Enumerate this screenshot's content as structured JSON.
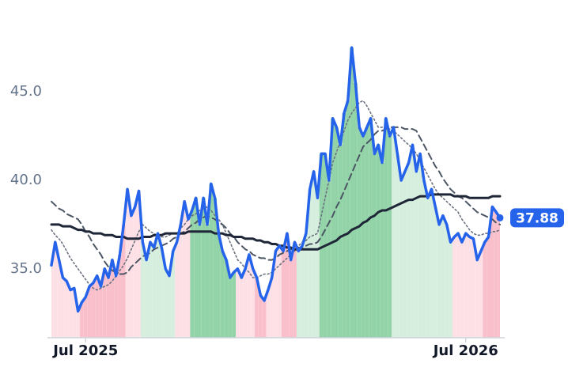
{
  "chart_data": {
    "type": "line",
    "categories": [
      null,
      null,
      null,
      null,
      null,
      null,
      null,
      null,
      null,
      "Jul 2025",
      null,
      null,
      null,
      null,
      null,
      null,
      null,
      null,
      null,
      null,
      null,
      null,
      null,
      null,
      null,
      null,
      null,
      null,
      null,
      null,
      null,
      null,
      null,
      null,
      null,
      null,
      null,
      null,
      null,
      null,
      null,
      null,
      null,
      null,
      null,
      null,
      null,
      null,
      null,
      null,
      null,
      null,
      null,
      null,
      null,
      null,
      null,
      null,
      null,
      null,
      null,
      null,
      null,
      null,
      null,
      null,
      null,
      null,
      null,
      null,
      null,
      null,
      null,
      null,
      null,
      null,
      null,
      null,
      null,
      null,
      null,
      null,
      null,
      null,
      null,
      null,
      null,
      null,
      null,
      null,
      null,
      null,
      null,
      null,
      null,
      null,
      null,
      null,
      null,
      null,
      null,
      null,
      null,
      null,
      null,
      null,
      null,
      null,
      null,
      "Jul 2026",
      null,
      null,
      null,
      null,
      null,
      null,
      null,
      null,
      null
    ],
    "series": [
      {
        "color": "#2563eb",
        "line_style": "solid",
        "values": [
          35.2,
          36.5,
          35.5,
          34.5,
          34.3,
          33.8,
          33.9,
          32.6,
          33.1,
          33.4,
          34.0,
          34.2,
          34.6,
          34.0,
          35.0,
          34.5,
          35.5,
          34.6,
          35.8,
          37.5,
          39.5,
          38.0,
          38.5,
          39.4,
          36.5,
          35.5,
          36.5,
          36.2,
          37.0,
          36.2,
          35.0,
          34.6,
          36.0,
          36.5,
          37.5,
          38.8,
          37.8,
          38.3,
          39.0,
          37.5,
          39.0,
          37.5,
          39.8,
          39.0,
          37.0,
          36.0,
          35.5,
          34.5,
          34.8,
          35.0,
          34.5,
          35.0,
          35.8,
          35.0,
          34.5,
          33.5,
          33.2,
          33.8,
          34.5,
          36.0,
          36.3,
          36.0,
          37.0,
          35.5,
          36.5,
          36.0,
          36.3,
          37.0,
          39.5,
          40.5,
          39.0,
          41.5,
          41.5,
          40.0,
          43.5,
          43.0,
          42.0,
          43.8,
          44.5,
          47.5,
          45.5,
          43.0,
          42.5,
          43.0,
          43.5,
          41.5,
          42.0,
          41.0,
          43.5,
          42.5,
          43.0,
          41.5,
          40.0,
          40.5,
          41.0,
          42.0,
          40.5,
          41.5,
          40.0,
          39.0,
          39.5,
          38.5,
          37.5,
          38.0,
          37.5,
          36.5,
          36.8,
          37.0,
          36.5,
          37.0,
          36.8,
          36.7,
          35.5,
          36.0,
          36.5,
          36.8,
          38.5,
          38.2,
          37.88
        ]
      },
      {
        "color": "#1e2638",
        "line_style": "solid",
        "values": [
          37.5,
          37.5,
          37.5,
          37.4,
          37.4,
          37.4,
          37.3,
          37.2,
          37.2,
          37.1,
          37.1,
          37.0,
          37.0,
          37.0,
          36.9,
          36.9,
          36.9,
          36.8,
          36.8,
          36.8,
          36.7,
          36.7,
          36.7,
          36.7,
          36.8,
          36.8,
          36.8,
          36.9,
          36.9,
          36.9,
          37.0,
          37.0,
          37.0,
          37.0,
          37.0,
          37.0,
          37.1,
          37.1,
          37.1,
          37.1,
          37.1,
          37.1,
          37.1,
          37.0,
          37.0,
          37.0,
          36.9,
          36.9,
          36.8,
          36.8,
          36.8,
          36.7,
          36.7,
          36.7,
          36.6,
          36.6,
          36.5,
          36.5,
          36.4,
          36.4,
          36.3,
          36.3,
          36.2,
          36.2,
          36.1,
          36.1,
          36.1,
          36.1,
          36.1,
          36.1,
          36.1,
          36.2,
          36.3,
          36.4,
          36.5,
          36.6,
          36.8,
          36.9,
          37.0,
          37.2,
          37.3,
          37.4,
          37.6,
          37.7,
          37.9,
          38.0,
          38.2,
          38.3,
          38.3,
          38.4,
          38.5,
          38.6,
          38.7,
          38.8,
          38.9,
          38.9,
          39.0,
          39.1,
          39.1,
          39.1,
          39.2,
          39.2,
          39.2,
          39.2,
          39.2,
          39.2,
          39.1,
          39.1,
          39.1,
          39.1,
          39.0,
          39.0,
          39.0,
          39.0,
          39.0,
          39.0,
          39.1,
          39.1,
          39.1
        ]
      },
      {
        "color": "#4b5563",
        "line_style": "dashed",
        "values": [
          38.8,
          38.6,
          38.4,
          38.3,
          38.1,
          38.0,
          37.9,
          37.8,
          37.5,
          37.1,
          36.8,
          36.4,
          36.1,
          35.8,
          35.4,
          35.1,
          34.9,
          34.8,
          34.7,
          34.7,
          34.8,
          35.1,
          35.3,
          35.5,
          35.7,
          35.8,
          35.9,
          36.1,
          36.2,
          36.3,
          36.4,
          36.5,
          36.7,
          36.8,
          37.0,
          37.1,
          37.3,
          37.5,
          37.6,
          37.8,
          37.9,
          38.0,
          37.9,
          37.8,
          37.6,
          37.5,
          37.3,
          37.0,
          36.8,
          36.5,
          36.3,
          36.1,
          36.0,
          35.8,
          35.7,
          35.6,
          35.6,
          35.5,
          35.5,
          35.6,
          35.8,
          35.9,
          36.0,
          36.1,
          36.1,
          36.2,
          36.2,
          36.3,
          36.4,
          36.4,
          36.5,
          36.8,
          37.2,
          37.6,
          38.0,
          38.5,
          38.9,
          39.4,
          39.9,
          40.4,
          40.9,
          41.4,
          41.9,
          42.1,
          42.3,
          42.6,
          42.8,
          42.8,
          42.9,
          43.0,
          43.0,
          43.0,
          43.0,
          42.9,
          42.9,
          42.9,
          42.8,
          42.4,
          42.0,
          41.6,
          41.2,
          40.8,
          40.5,
          40.1,
          39.8,
          39.5,
          39.3,
          39.1,
          39.0,
          38.8,
          38.6,
          38.4,
          38.2,
          38.1,
          38.0,
          37.9,
          37.8,
          37.6,
          37.5
        ]
      },
      {
        "color": "#6b7280",
        "line_style": "dotted",
        "values": [
          37.2,
          36.9,
          36.7,
          36.4,
          36.0,
          35.6,
          35.3,
          35.0,
          34.7,
          34.4,
          34.1,
          33.9,
          33.8,
          33.9,
          34.0,
          34.1,
          34.3,
          34.6,
          34.9,
          35.2,
          35.6,
          36.1,
          36.6,
          37.1,
          37.5,
          37.3,
          37.1,
          37.0,
          36.8,
          36.8,
          36.8,
          36.9,
          37.0,
          37.0,
          37.3,
          37.5,
          37.8,
          38.0,
          38.1,
          38.3,
          38.4,
          38.5,
          38.3,
          38.0,
          37.8,
          37.5,
          37.0,
          36.5,
          36.0,
          35.5,
          35.3,
          35.0,
          34.8,
          34.5,
          34.5,
          34.6,
          34.7,
          34.7,
          34.8,
          35.0,
          35.2,
          35.4,
          35.6,
          35.8,
          36.0,
          36.3,
          36.5,
          36.6,
          36.8,
          36.9,
          37.0,
          38.0,
          39.0,
          40.0,
          41.0,
          41.6,
          42.2,
          42.8,
          43.4,
          43.8,
          44.1,
          44.4,
          44.5,
          44.2,
          43.8,
          43.4,
          43.0,
          43.0,
          42.9,
          42.9,
          42.8,
          42.6,
          42.4,
          42.2,
          42.0,
          41.8,
          41.5,
          41.1,
          40.7,
          40.3,
          39.9,
          39.5,
          39.2,
          39.0,
          38.8,
          38.6,
          38.4,
          38.2,
          37.8,
          37.5,
          37.2,
          37.0,
          36.9,
          36.9,
          37.0,
          37.0,
          37.1,
          37.1,
          37.2
        ]
      }
    ],
    "band_colors": [
      "#fde0e6",
      "#fde0e6",
      "#fde0e6",
      "#fde0e6",
      "#fde0e6",
      "#fde0e6",
      "#fde0e6",
      "#fde0e6",
      "#f9c0cc",
      "#f9c0cc",
      "#f9c0cc",
      "#f9c0cc",
      "#f9c0cc",
      "#f9c0cc",
      "#f9c0cc",
      "#f9c0cc",
      "#f9c0cc",
      "#f9c0cc",
      "#f9c0cc",
      "#f9c0cc",
      "#fde0e6",
      "#fde0e6",
      "#fde0e6",
      "#fde0e6",
      "#d5eedd",
      "#d5eedd",
      "#d5eedd",
      "#d5eedd",
      "#d5eedd",
      "#d5eedd",
      "#d5eedd",
      "#d5eedd",
      "#d5eedd",
      "#fde0e6",
      "#fde0e6",
      "#fde0e6",
      "#fde0e6",
      "#93d3a8",
      "#93d3a8",
      "#93d3a8",
      "#93d3a8",
      "#93d3a8",
      "#93d3a8",
      "#93d3a8",
      "#93d3a8",
      "#93d3a8",
      "#93d3a8",
      "#93d3a8",
      "#93d3a8",
      "#fde0e6",
      "#fde0e6",
      "#fde0e6",
      "#fde0e6",
      "#fde0e6",
      "#f9c0cc",
      "#f9c0cc",
      "#f9c0cc",
      "#fde0e6",
      "#fde0e6",
      "#fde0e6",
      "#fde0e6",
      "#f9c0cc",
      "#f9c0cc",
      "#f9c0cc",
      "#f9c0cc",
      "#d5eedd",
      "#d5eedd",
      "#d5eedd",
      "#d5eedd",
      "#d5eedd",
      "#d5eedd",
      "#93d3a8",
      "#93d3a8",
      "#93d3a8",
      "#93d3a8",
      "#93d3a8",
      "#93d3a8",
      "#93d3a8",
      "#93d3a8",
      "#93d3a8",
      "#93d3a8",
      "#93d3a8",
      "#93d3a8",
      "#93d3a8",
      "#93d3a8",
      "#93d3a8",
      "#93d3a8",
      "#93d3a8",
      "#93d3a8",
      "#93d3a8",
      "#d5eedd",
      "#d5eedd",
      "#d5eedd",
      "#d5eedd",
      "#d5eedd",
      "#d5eedd",
      "#d5eedd",
      "#d5eedd",
      "#d5eedd",
      "#d5eedd",
      "#d5eedd",
      "#d5eedd",
      "#d5eedd",
      "#d5eedd",
      "#d5eedd",
      "#d5eedd",
      "#fde0e6",
      "#fde0e6",
      "#fde0e6",
      "#fde0e6",
      "#fde0e6",
      "#fde0e6",
      "#fde0e6",
      "#fde0e6",
      "#f9c0cc",
      "#f9c0cc",
      "#f9c0cc",
      "#f9c0cc",
      "#f9c0cc"
    ],
    "ylim": [
      31.1,
      49.3
    ],
    "yticks": [
      {
        "value": 35,
        "label": "35.0"
      },
      {
        "value": 40,
        "label": "40.0"
      },
      {
        "value": 45,
        "label": "45.0"
      }
    ],
    "grid": false
  }
}
